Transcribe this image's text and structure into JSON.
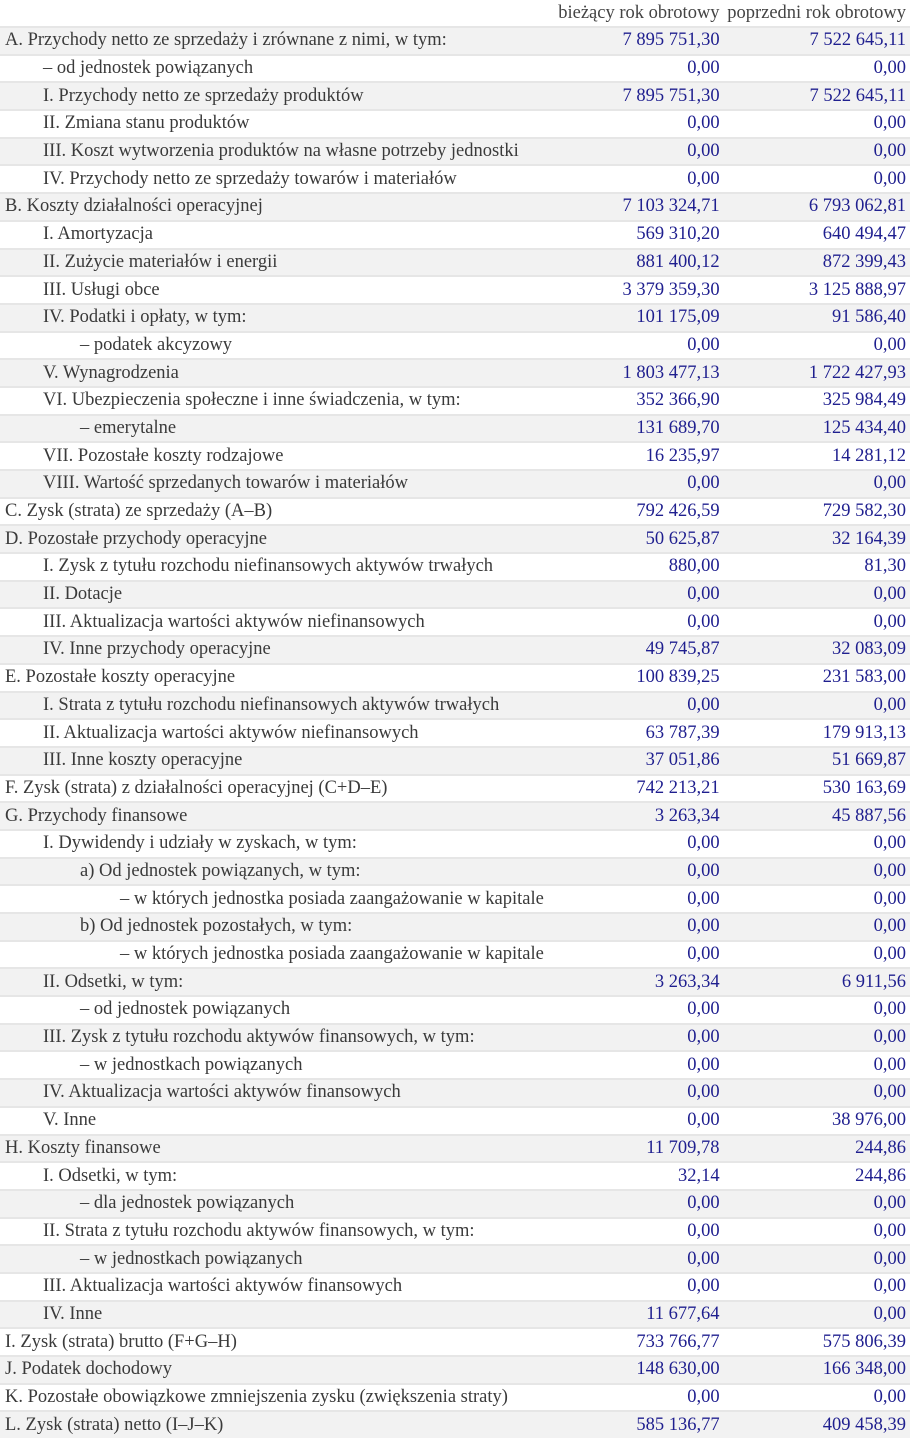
{
  "header": {
    "col_current": "bieżący rok obrotowy",
    "col_previous": "poprzedni rok obrotowy"
  },
  "rows": [
    {
      "label": "A. Przychody netto ze sprzedaży i zrównane z nimi, w tym:",
      "level": 0,
      "current": "7 895 751,30",
      "previous": "7 522 645,11"
    },
    {
      "label": "– od jednostek powiązanych",
      "level": 1,
      "current": "0,00",
      "previous": "0,00"
    },
    {
      "label": "I. Przychody netto ze sprzedaży produktów",
      "level": 1,
      "current": "7 895 751,30",
      "previous": "7 522 645,11"
    },
    {
      "label": "II. Zmiana stanu produktów",
      "level": 1,
      "current": "0,00",
      "previous": "0,00"
    },
    {
      "label": "III. Koszt wytworzenia produktów na własne potrzeby jednostki",
      "level": 1,
      "current": "0,00",
      "previous": "0,00"
    },
    {
      "label": "IV. Przychody netto ze sprzedaży towarów i materiałów",
      "level": 1,
      "current": "0,00",
      "previous": "0,00"
    },
    {
      "label": "B. Koszty działalności operacyjnej",
      "level": 0,
      "current": "7 103 324,71",
      "previous": "6 793 062,81"
    },
    {
      "label": "I. Amortyzacja",
      "level": 1,
      "current": "569 310,20",
      "previous": "640 494,47"
    },
    {
      "label": "II. Zużycie materiałów i energii",
      "level": 1,
      "current": "881 400,12",
      "previous": "872 399,43"
    },
    {
      "label": "III. Usługi obce",
      "level": 1,
      "current": "3 379 359,30",
      "previous": "3 125 888,97"
    },
    {
      "label": "IV. Podatki i opłaty, w tym:",
      "level": 1,
      "current": "101 175,09",
      "previous": "91 586,40"
    },
    {
      "label": "– podatek akcyzowy",
      "level": 2,
      "current": "0,00",
      "previous": "0,00"
    },
    {
      "label": "V. Wynagrodzenia",
      "level": 1,
      "current": "1 803 477,13",
      "previous": "1 722 427,93"
    },
    {
      "label": "VI. Ubezpieczenia społeczne i inne świadczenia, w tym:",
      "level": 1,
      "current": "352 366,90",
      "previous": "325 984,49"
    },
    {
      "label": "– emerytalne",
      "level": 2,
      "current": "131 689,70",
      "previous": "125 434,40"
    },
    {
      "label": "VII. Pozostałe koszty rodzajowe",
      "level": 1,
      "current": "16 235,97",
      "previous": "14 281,12"
    },
    {
      "label": "VIII. Wartość sprzedanych towarów i materiałów",
      "level": 1,
      "current": "0,00",
      "previous": "0,00"
    },
    {
      "label": "C. Zysk (strata) ze sprzedaży (A–B)",
      "level": 0,
      "current": "792 426,59",
      "previous": "729 582,30"
    },
    {
      "label": "D. Pozostałe przychody operacyjne",
      "level": 0,
      "current": "50 625,87",
      "previous": "32 164,39"
    },
    {
      "label": "I. Zysk z tytułu rozchodu niefinansowych aktywów trwałych",
      "level": 1,
      "current": "880,00",
      "previous": "81,30"
    },
    {
      "label": "II. Dotacje",
      "level": 1,
      "current": "0,00",
      "previous": "0,00"
    },
    {
      "label": "III. Aktualizacja wartości aktywów niefinansowych",
      "level": 1,
      "current": "0,00",
      "previous": "0,00"
    },
    {
      "label": "IV. Inne przychody operacyjne",
      "level": 1,
      "current": "49 745,87",
      "previous": "32 083,09"
    },
    {
      "label": "E. Pozostałe koszty operacyjne",
      "level": 0,
      "current": "100 839,25",
      "previous": "231 583,00"
    },
    {
      "label": "I. Strata z tytułu rozchodu niefinansowych aktywów trwałych",
      "level": 1,
      "current": "0,00",
      "previous": "0,00"
    },
    {
      "label": "II. Aktualizacja wartości aktywów niefinansowych",
      "level": 1,
      "current": "63 787,39",
      "previous": "179 913,13"
    },
    {
      "label": "III. Inne koszty operacyjne",
      "level": 1,
      "current": "37 051,86",
      "previous": "51 669,87"
    },
    {
      "label": "F. Zysk (strata) z działalności operacyjnej (C+D–E)",
      "level": 0,
      "current": "742 213,21",
      "previous": "530 163,69"
    },
    {
      "label": "G. Przychody finansowe",
      "level": 0,
      "current": "3 263,34",
      "previous": "45 887,56"
    },
    {
      "label": "I. Dywidendy i udziały w zyskach, w tym:",
      "level": 1,
      "current": "0,00",
      "previous": "0,00"
    },
    {
      "label": "a) Od jednostek powiązanych, w tym:",
      "level": 2,
      "current": "0,00",
      "previous": "0,00"
    },
    {
      "label": "– w których jednostka posiada zaangażowanie w kapitale",
      "level": 3,
      "current": "0,00",
      "previous": "0,00"
    },
    {
      "label": "b) Od jednostek pozostałych, w tym:",
      "level": 2,
      "current": "0,00",
      "previous": "0,00"
    },
    {
      "label": "– w których jednostka posiada zaangażowanie w kapitale",
      "level": 3,
      "current": "0,00",
      "previous": "0,00"
    },
    {
      "label": "II. Odsetki, w tym:",
      "level": 1,
      "current": "3 263,34",
      "previous": "6 911,56"
    },
    {
      "label": "– od jednostek powiązanych",
      "level": 2,
      "current": "0,00",
      "previous": "0,00"
    },
    {
      "label": "III. Zysk z tytułu rozchodu aktywów finansowych, w tym:",
      "level": 1,
      "current": "0,00",
      "previous": "0,00"
    },
    {
      "label": "– w jednostkach powiązanych",
      "level": 2,
      "current": "0,00",
      "previous": "0,00"
    },
    {
      "label": "IV. Aktualizacja wartości aktywów finansowych",
      "level": 1,
      "current": "0,00",
      "previous": "0,00"
    },
    {
      "label": "V. Inne",
      "level": 1,
      "current": "0,00",
      "previous": "38 976,00"
    },
    {
      "label": "H. Koszty finansowe",
      "level": 0,
      "current": "11 709,78",
      "previous": "244,86"
    },
    {
      "label": "I. Odsetki, w tym:",
      "level": 1,
      "current": "32,14",
      "previous": "244,86"
    },
    {
      "label": "– dla jednostek powiązanych",
      "level": 2,
      "current": "0,00",
      "previous": "0,00"
    },
    {
      "label": "II. Strata z tytułu rozchodu aktywów finansowych, w tym:",
      "level": 1,
      "current": "0,00",
      "previous": "0,00"
    },
    {
      "label": "– w jednostkach powiązanych",
      "level": 2,
      "current": "0,00",
      "previous": "0,00"
    },
    {
      "label": "III. Aktualizacja wartości aktywów finansowych",
      "level": 1,
      "current": "0,00",
      "previous": "0,00"
    },
    {
      "label": "IV. Inne",
      "level": 1,
      "current": "11 677,64",
      "previous": "0,00"
    },
    {
      "label": "I. Zysk (strata) brutto (F+G–H)",
      "level": 0,
      "current": "733 766,77",
      "previous": "575 806,39"
    },
    {
      "label": "J. Podatek dochodowy",
      "level": 0,
      "current": "148 630,00",
      "previous": "166 348,00"
    },
    {
      "label": "K. Pozostałe obowiązkowe zmniejszenia zysku (zwiększenia straty)",
      "level": 0,
      "current": "0,00",
      "previous": "0,00"
    },
    {
      "label": "L. Zysk (strata) netto (I–J–K)",
      "level": 0,
      "current": "585 136,77",
      "previous": "409 458,39"
    }
  ]
}
